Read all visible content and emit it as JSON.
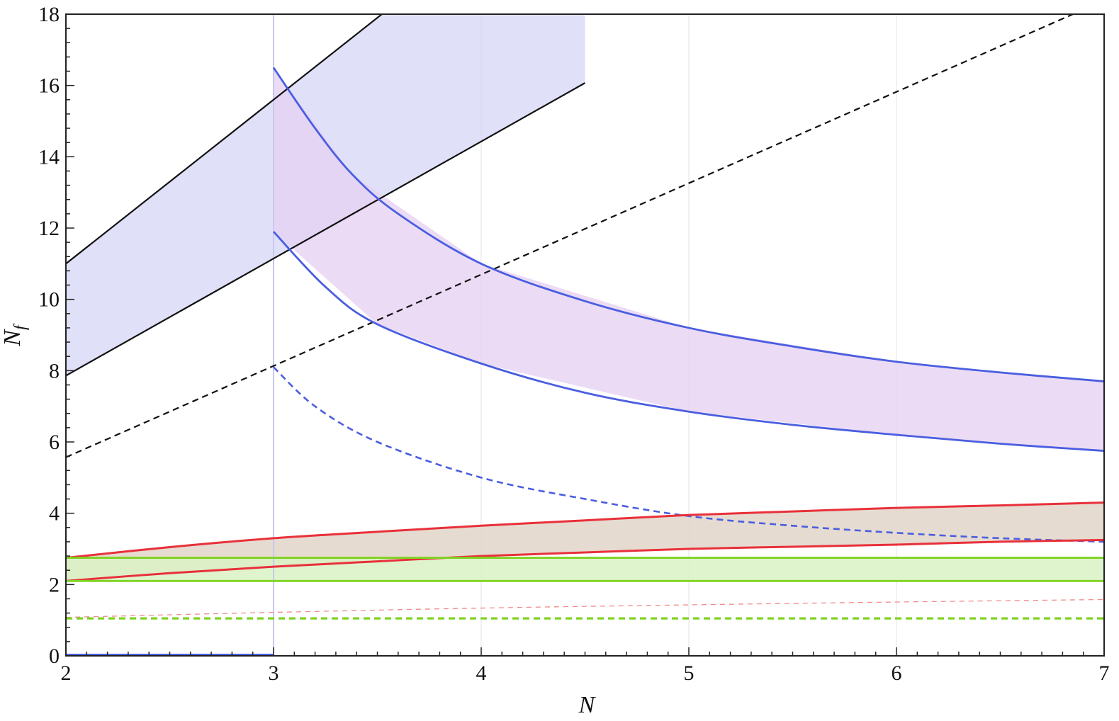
{
  "chart_data": {
    "type": "line",
    "title": "",
    "xlabel": "N",
    "ylabel": "N_f",
    "ylabel_parts": {
      "main": "N",
      "sub": "f"
    },
    "xlim": [
      2,
      7
    ],
    "ylim": [
      0,
      18
    ],
    "x_ticks": [
      2,
      3,
      4,
      5,
      6,
      7
    ],
    "y_ticks": [
      0,
      2,
      4,
      6,
      8,
      10,
      12,
      14,
      16,
      18
    ],
    "grid": "vertical-at-major-x-ticks",
    "legend": "none",
    "bands": [
      {
        "color": "#d6d6f5",
        "opacity": 0.75,
        "x": [
          2,
          4.5
        ],
        "upper": [
          11.0,
          22.5
        ],
        "lower": [
          7.86,
          16.07
        ],
        "note": "linear"
      },
      {
        "color": "#e6d2f2",
        "opacity": 0.8,
        "x": [
          3,
          7
        ],
        "upper": [
          [
            3,
            16.5
          ],
          [
            3.38,
            13.5
          ],
          [
            4,
            11.0
          ],
          [
            5,
            9.2
          ],
          [
            6,
            8.25
          ],
          [
            7,
            7.7
          ]
        ],
        "lower": [
          [
            3,
            11.9
          ],
          [
            3.5,
            9.3
          ],
          [
            4,
            8.2
          ],
          [
            5,
            6.85
          ],
          [
            6,
            6.2
          ],
          [
            7,
            5.75
          ]
        ]
      },
      {
        "color": "#e2d5c8",
        "opacity": 0.85,
        "x": [
          2,
          7
        ],
        "upper": [
          [
            2,
            2.75
          ],
          [
            3,
            3.3
          ],
          [
            4,
            3.65
          ],
          [
            5,
            3.95
          ],
          [
            6,
            4.15
          ],
          [
            7,
            4.3
          ]
        ],
        "lower": [
          [
            2,
            2.1
          ],
          [
            3,
            2.5
          ],
          [
            4,
            2.8
          ],
          [
            5,
            3.0
          ],
          [
            6,
            3.12
          ],
          [
            7,
            3.25
          ]
        ]
      },
      {
        "color": "#d9f2c4",
        "opacity": 0.85,
        "x": [
          2,
          7
        ],
        "upper": 2.75,
        "lower": 2.1
      }
    ],
    "series": [
      {
        "color": "#111111",
        "style": "solid",
        "width": 2.2,
        "points": [
          [
            2,
            11.0
          ],
          [
            4.5,
            22.5
          ]
        ]
      },
      {
        "color": "#111111",
        "style": "solid",
        "width": 2.2,
        "points": [
          [
            2,
            7.86
          ],
          [
            4.5,
            16.07
          ]
        ]
      },
      {
        "color": "#111111",
        "style": "dashed",
        "width": 2.2,
        "points": [
          [
            2,
            5.57
          ],
          [
            6.85,
            18.0
          ]
        ]
      },
      {
        "color": "#4a5ee0",
        "style": "solid",
        "width": 2.8,
        "points": [
          [
            3,
            16.5
          ],
          [
            3.2,
            14.8
          ],
          [
            3.38,
            13.5
          ],
          [
            3.6,
            12.4
          ],
          [
            4,
            11.0
          ],
          [
            4.5,
            9.95
          ],
          [
            5,
            9.2
          ],
          [
            5.5,
            8.68
          ],
          [
            6,
            8.25
          ],
          [
            6.5,
            7.95
          ],
          [
            7,
            7.7
          ]
        ]
      },
      {
        "color": "#4a5ee0",
        "style": "solid",
        "width": 2.8,
        "points": [
          [
            3,
            11.9
          ],
          [
            3.25,
            10.35
          ],
          [
            3.5,
            9.3
          ],
          [
            4,
            8.2
          ],
          [
            4.5,
            7.38
          ],
          [
            5,
            6.85
          ],
          [
            5.5,
            6.48
          ],
          [
            6,
            6.2
          ],
          [
            6.5,
            5.95
          ],
          [
            7,
            5.75
          ]
        ]
      },
      {
        "color": "#4a5ee0",
        "style": "dashed",
        "width": 2.6,
        "points": [
          [
            3,
            8.1
          ],
          [
            3.2,
            7.0
          ],
          [
            3.5,
            6.0
          ],
          [
            4,
            5.0
          ],
          [
            4.5,
            4.4
          ],
          [
            5,
            3.92
          ],
          [
            5.5,
            3.65
          ],
          [
            6,
            3.45
          ],
          [
            6.5,
            3.3
          ],
          [
            7,
            3.2
          ]
        ]
      },
      {
        "color": "#4a5ee0",
        "style": "solid",
        "width": 3.0,
        "points": [
          [
            2,
            0.03
          ],
          [
            3,
            0.03
          ]
        ]
      },
      {
        "color": "#e8303a",
        "style": "solid",
        "width": 3.0,
        "points": [
          [
            2,
            2.75
          ],
          [
            2.5,
            3.05
          ],
          [
            3,
            3.3
          ],
          [
            3.5,
            3.48
          ],
          [
            4,
            3.65
          ],
          [
            4.5,
            3.8
          ],
          [
            5,
            3.95
          ],
          [
            5.5,
            4.05
          ],
          [
            6,
            4.15
          ],
          [
            6.5,
            4.22
          ],
          [
            7,
            4.3
          ]
        ]
      },
      {
        "color": "#e8303a",
        "style": "solid",
        "width": 3.0,
        "points": [
          [
            2,
            2.1
          ],
          [
            2.5,
            2.32
          ],
          [
            3,
            2.5
          ],
          [
            3.5,
            2.65
          ],
          [
            4,
            2.8
          ],
          [
            4.5,
            2.9
          ],
          [
            5,
            3.0
          ],
          [
            5.5,
            3.06
          ],
          [
            6,
            3.12
          ],
          [
            6.5,
            3.2
          ],
          [
            7,
            3.25
          ]
        ]
      },
      {
        "color": "#f08a8a",
        "style": "dashed",
        "width": 1.3,
        "points": [
          [
            2,
            1.08
          ],
          [
            3,
            1.22
          ],
          [
            4,
            1.34
          ],
          [
            5,
            1.43
          ],
          [
            6,
            1.51
          ],
          [
            7,
            1.58
          ]
        ]
      },
      {
        "color": "#7ed321",
        "style": "solid",
        "width": 2.8,
        "points": [
          [
            2,
            2.75
          ],
          [
            7,
            2.75
          ]
        ]
      },
      {
        "color": "#7ed321",
        "style": "solid",
        "width": 2.8,
        "points": [
          [
            2,
            2.1
          ],
          [
            7,
            2.1
          ]
        ]
      },
      {
        "color": "#7ed321",
        "style": "dashed",
        "width": 3.2,
        "points": [
          [
            2,
            1.05
          ],
          [
            7,
            1.05
          ]
        ]
      }
    ],
    "reference_line": {
      "x": 3,
      "color": "#c8c8ee"
    }
  }
}
